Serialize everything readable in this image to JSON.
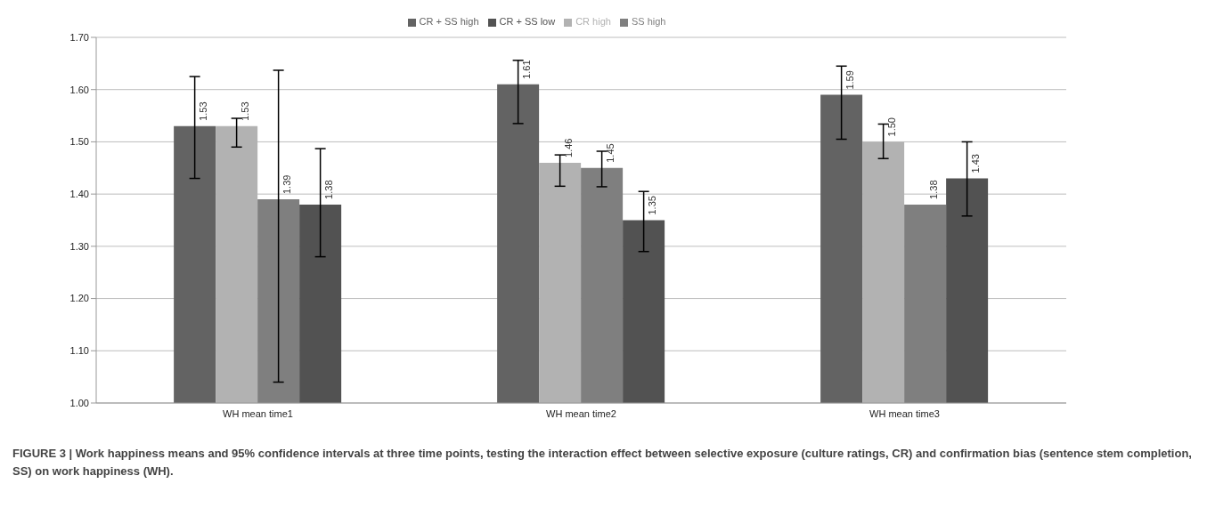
{
  "chart_data": {
    "type": "bar",
    "title": "FIGURE 3 | Work happiness means and 95% confidence intervals at three time points, testing the interaction effect between selective exposure (culture ratings, CR) and confirmation bias (sentence stem completion, SS) on work happiness (WH).",
    "categories": [
      "WH mean time1",
      "WH mean time2",
      "WH mean time3"
    ],
    "series": [
      {
        "name": "CR + SS high",
        "color": "#636363",
        "values": [
          1.53,
          1.61,
          1.59
        ],
        "value_labels": [
          "1.53",
          "1.61",
          "1.59"
        ],
        "errors": [
          [
            1.43,
            1.625
          ],
          [
            1.535,
            1.656
          ],
          [
            1.505,
            1.645
          ]
        ]
      },
      {
        "name": "CR high",
        "color": "#b2b2b2",
        "values": [
          1.53,
          1.46,
          1.5
        ],
        "value_labels": [
          "1.53",
          "1.46",
          "1.50"
        ],
        "errors": [
          [
            1.49,
            1.545
          ],
          [
            1.415,
            1.475
          ],
          [
            1.468,
            1.534
          ]
        ]
      },
      {
        "name": "SS high",
        "color": "#7f7f7f",
        "values": [
          1.39,
          1.45,
          1.38
        ],
        "value_labels": [
          "1.39",
          "1.45",
          "1.38"
        ],
        "errors": [
          [
            1.04,
            1.637
          ],
          [
            1.414,
            1.482
          ],
          null
        ]
      },
      {
        "name": "CR + SS low",
        "color": "#525252",
        "values": [
          1.38,
          1.35,
          1.43
        ],
        "value_labels": [
          "1.38",
          "1.35",
          "1.43"
        ],
        "errors": [
          [
            1.28,
            1.487
          ],
          [
            1.29,
            1.405
          ],
          [
            1.358,
            1.5
          ]
        ]
      }
    ],
    "ylim": [
      1.0,
      1.7
    ],
    "yticks": [
      {
        "value": 1.0,
        "label": "1.00"
      },
      {
        "value": 1.1,
        "label": "1.10"
      },
      {
        "value": 1.2,
        "label": "1.20"
      },
      {
        "value": 1.3,
        "label": "1.30"
      },
      {
        "value": 1.4,
        "label": "1.40"
      },
      {
        "value": 1.5,
        "label": "1.50"
      },
      {
        "value": 1.6,
        "label": "1.60"
      },
      {
        "value": 1.7,
        "label": "1.70"
      }
    ],
    "grid": "y",
    "legend": "top"
  }
}
